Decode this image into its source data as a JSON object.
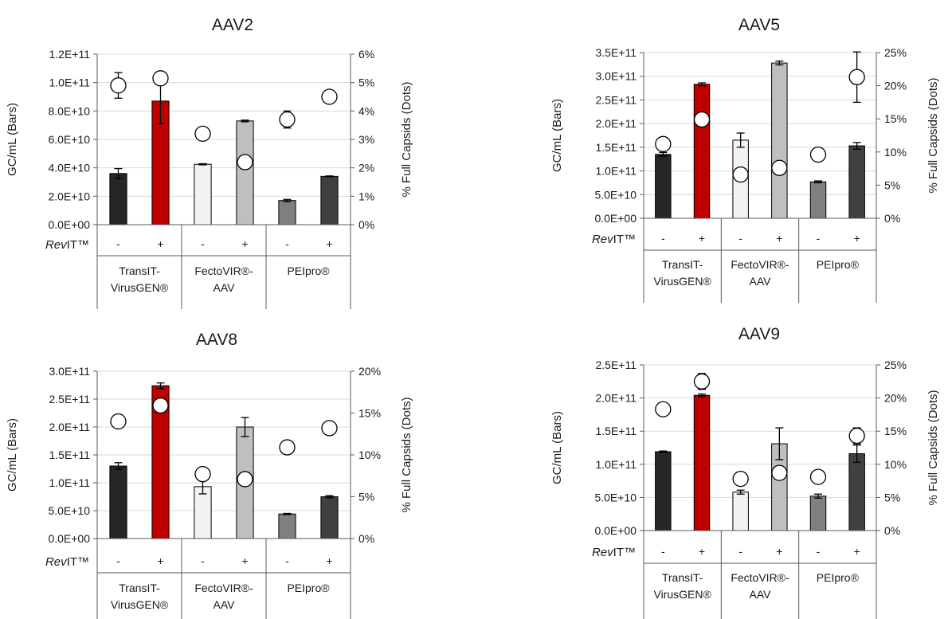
{
  "chart_data": [
    {
      "type": "bar",
      "title": "AAV2",
      "ylabel": "GC/mL (Bars)",
      "y2label": "% Full Capsids (Dots)",
      "ylim": [
        0,
        120000000000
      ],
      "y2lim": [
        0,
        6
      ],
      "yticks": [
        "0.0E+00",
        "2.0E+10",
        "4.0E+10",
        "6.0E+10",
        "8.0E+10",
        "1.0E+11",
        "1.2E+11"
      ],
      "y2ticks": [
        "0%",
        "1%",
        "2%",
        "3%",
        "4%",
        "5%",
        "6%"
      ],
      "grid": true,
      "categories": [
        "-",
        "+",
        "-",
        "+",
        "-",
        "+"
      ],
      "row_label": "RevIT™",
      "groups": [
        "TransIT-VirusGEN®",
        "FectoVIR®-AAV",
        "PEIpro®"
      ],
      "bar_colors": [
        "#262626",
        "#c00000",
        "#f2f2f2",
        "#bfbfbf",
        "#808080",
        "#404040"
      ],
      "bar_values": [
        36000000000,
        87000000000,
        42500000000,
        73000000000,
        17000000000,
        34000000000
      ],
      "bar_errors": [
        3500000000,
        16000000000,
        400000000,
        600000000,
        800000000,
        300000000
      ],
      "dot_values": [
        4.9,
        5.15,
        3.2,
        2.2,
        3.7,
        4.5
      ],
      "dot_errors": [
        0.45,
        0,
        0,
        0,
        0.3,
        0
      ]
    },
    {
      "type": "bar",
      "title": "AAV5",
      "ylabel": "GC/mL (Bars)",
      "y2label": "% Full Capsids (Dots)",
      "ylim": [
        0,
        350000000000
      ],
      "y2lim": [
        0,
        25
      ],
      "yticks": [
        "0.0E+00",
        "5.0E+10",
        "1.0E+11",
        "1.5E+11",
        "2.0E+11",
        "2.5E+11",
        "3.0E+11",
        "3.5E+11"
      ],
      "y2ticks": [
        "0%",
        "5%",
        "10%",
        "15%",
        "20%",
        "25%"
      ],
      "grid": true,
      "categories": [
        "-",
        "+",
        "-",
        "+",
        "-",
        "+"
      ],
      "row_label": "RevIT™",
      "groups": [
        "TransIT-VirusGEN®",
        "FectoVIR®-AAV",
        "PEIpro®"
      ],
      "bar_colors": [
        "#262626",
        "#c00000",
        "#f2f2f2",
        "#bfbfbf",
        "#808080",
        "#404040"
      ],
      "bar_values": [
        135000000000,
        283000000000,
        165000000000,
        328000000000,
        77000000000,
        153000000000
      ],
      "bar_errors": [
        4000000000,
        3000000000,
        15000000000,
        4000000000,
        2000000000,
        7000000000
      ],
      "dot_values": [
        11.2,
        14.9,
        6.6,
        7.6,
        9.6,
        21.3
      ],
      "dot_errors": [
        0,
        1.0,
        0,
        0,
        1.0,
        3.8
      ]
    },
    {
      "type": "bar",
      "title": "AAV8",
      "ylabel": "GC/mL (Bars)",
      "y2label": "% Full Capsids (Dots)",
      "ylim": [
        0,
        300000000000
      ],
      "y2lim": [
        0,
        20
      ],
      "yticks": [
        "0.0E+00",
        "5.0E+10",
        "1.0E+11",
        "1.5E+11",
        "2.0E+11",
        "2.5E+11",
        "3.0E+11"
      ],
      "y2ticks": [
        "0%",
        "5%",
        "10%",
        "15%",
        "20%"
      ],
      "grid": true,
      "categories": [
        "-",
        "+",
        "-",
        "+",
        "-",
        "+"
      ],
      "row_label": "RevIT™",
      "groups": [
        "TransIT-VirusGEN®",
        "FectoVIR®-AAV",
        "PEIpro®"
      ],
      "bar_colors": [
        "#262626",
        "#c00000",
        "#f2f2f2",
        "#bfbfbf",
        "#808080",
        "#404040"
      ],
      "bar_values": [
        130000000000,
        274000000000,
        93000000000,
        200000000000,
        44000000000,
        75000000000
      ],
      "bar_errors": [
        6000000000,
        5000000000,
        13000000000,
        17000000000,
        1000000000,
        2000000000
      ],
      "dot_values": [
        14.0,
        15.9,
        7.7,
        7.1,
        10.9,
        13.2
      ],
      "dot_errors": [
        0.8,
        0,
        0,
        0,
        0,
        0
      ]
    },
    {
      "type": "bar",
      "title": "AAV9",
      "ylabel": "GC/mL (Bars)",
      "y2label": "% Full Capsids (Dots)",
      "ylim": [
        0,
        250000000000
      ],
      "y2lim": [
        0,
        25
      ],
      "yticks": [
        "0.0E+00",
        "5.0E+10",
        "1.0E+11",
        "1.5E+11",
        "2.0E+11",
        "2.5E+11"
      ],
      "y2ticks": [
        "0%",
        "5%",
        "10%",
        "15%",
        "20%",
        "25%"
      ],
      "grid": true,
      "categories": [
        "-",
        "+",
        "-",
        "+",
        "-",
        "+"
      ],
      "row_label": "RevIT™",
      "groups": [
        "TransIT-VirusGEN®",
        "FectoVIR®-AAV",
        "PEIpro®"
      ],
      "bar_colors": [
        "#262626",
        "#c00000",
        "#f2f2f2",
        "#bfbfbf",
        "#808080",
        "#404040"
      ],
      "bar_values": [
        119000000000,
        204000000000,
        58000000000,
        131000000000,
        52000000000,
        116000000000
      ],
      "bar_errors": [
        1000000000,
        2000000000,
        3000000000,
        24000000000,
        3000000000,
        13000000000
      ],
      "dot_values": [
        18.3,
        22.5,
        7.8,
        8.7,
        8.1,
        14.3
      ],
      "dot_errors": [
        0,
        1.2,
        1.0,
        0,
        0,
        1.2
      ]
    }
  ]
}
